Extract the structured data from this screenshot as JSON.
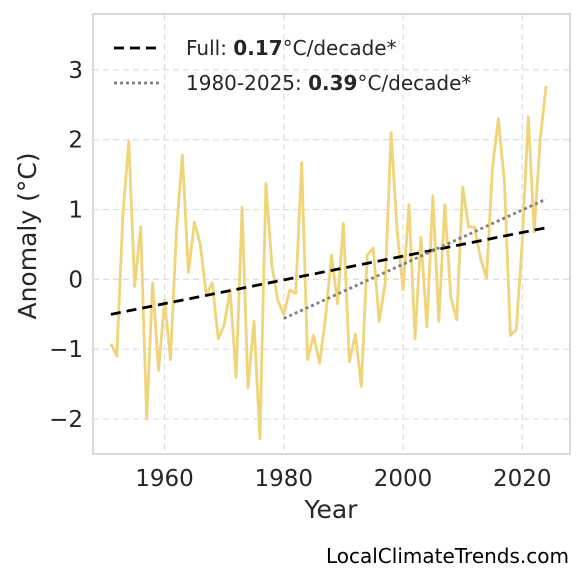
{
  "chart_data": {
    "type": "line",
    "xlabel": "Year",
    "ylabel": "Anomaly (°C)",
    "xlim": [
      1948,
      2028
    ],
    "ylim": [
      -2.5,
      3.8
    ],
    "x_ticks": [
      1960,
      1980,
      2000,
      2020
    ],
    "y_ticks": [
      -2,
      -1,
      0,
      1,
      2,
      3
    ],
    "y_tick_labels": [
      "−2",
      "−1",
      "0",
      "1",
      "2",
      "3"
    ],
    "grid": true,
    "legend_position": "top-left",
    "series": [
      {
        "color": "#f0d479",
        "x": [
          1951,
          1952,
          1953,
          1954,
          1955,
          1956,
          1957,
          1958,
          1959,
          1960,
          1961,
          1962,
          1963,
          1964,
          1965,
          1966,
          1967,
          1968,
          1969,
          1970,
          1971,
          1972,
          1973,
          1974,
          1975,
          1976,
          1977,
          1978,
          1979,
          1980,
          1981,
          1982,
          1983,
          1984,
          1985,
          1986,
          1987,
          1988,
          1989,
          1990,
          1991,
          1992,
          1993,
          1994,
          1995,
          1996,
          1997,
          1998,
          1999,
          2000,
          2001,
          2002,
          2003,
          2004,
          2005,
          2006,
          2007,
          2008,
          2009,
          2010,
          2011,
          2012,
          2013,
          2014,
          2015,
          2016,
          2017,
          2018,
          2019,
          2020,
          2021,
          2022,
          2023,
          2024
        ],
        "y": [
          -0.92,
          -1.1,
          0.9,
          1.98,
          -0.1,
          0.75,
          -2.0,
          -0.05,
          -1.3,
          -0.3,
          -1.15,
          0.7,
          1.78,
          0.1,
          0.82,
          0.5,
          -0.22,
          -0.05,
          -0.85,
          -0.65,
          -0.15,
          -1.4,
          1.03,
          -1.55,
          -0.6,
          -2.28,
          1.37,
          0.2,
          -0.3,
          -0.5,
          -0.15,
          -0.2,
          1.67,
          -1.15,
          -0.8,
          -1.2,
          -0.55,
          0.35,
          -0.35,
          0.8,
          -1.18,
          -0.78,
          -1.53,
          0.35,
          0.45,
          -0.6,
          -0.05,
          2.1,
          0.7,
          -0.15,
          1.07,
          -0.85,
          0.6,
          -0.68,
          1.2,
          -0.6,
          1.07,
          -0.25,
          -0.58,
          1.32,
          0.75,
          0.75,
          0.3,
          0.02,
          1.6,
          2.3,
          1.4,
          -0.8,
          -0.72,
          0.55,
          2.33,
          0.68,
          2.0,
          2.77
        ]
      }
    ],
    "trend_lines": [
      {
        "x": [
          1951,
          2024
        ],
        "y": [
          -0.5,
          0.74
        ],
        "style": "dashed",
        "color": "#000000"
      },
      {
        "x": [
          1980,
          2024
        ],
        "y": [
          -0.56,
          1.15
        ],
        "style": "dotted",
        "color": "#808080"
      }
    ],
    "legend": [
      {
        "prefix": "Full: ",
        "value": "0.17",
        "suffix": "°C/decade*",
        "style": "dashed",
        "color": "#000000"
      },
      {
        "prefix": "1980-2025: ",
        "value": "0.39",
        "suffix": "°C/decade*",
        "style": "dotted",
        "color": "#808080"
      }
    ]
  },
  "watermark": "LocalClimateTrends.com"
}
